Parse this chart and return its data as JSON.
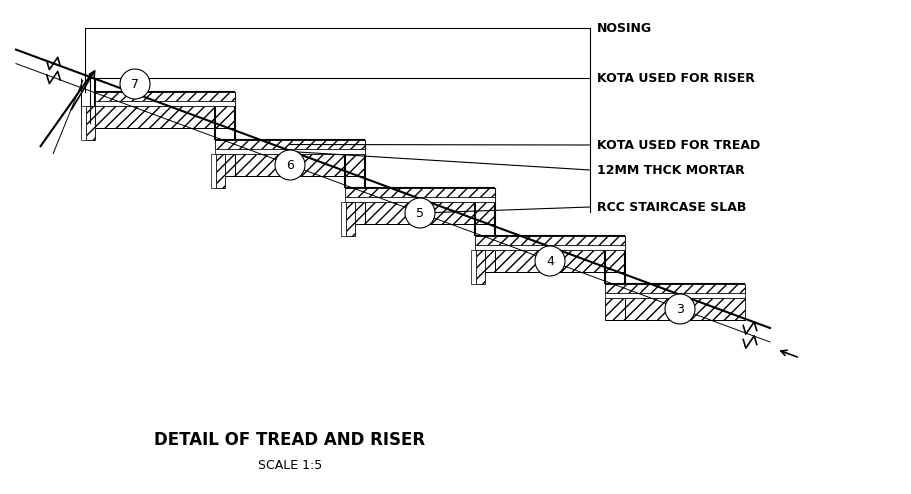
{
  "title": "DETAIL OF TREAD AND RISER",
  "subtitle": "SCALE 1:5",
  "labels": {
    "nosing": "NOSING",
    "kota_riser": "KOTA USED FOR RISER",
    "kota_tread": "KOTA USED FOR TREAD",
    "mortar": "12MM THCK MORTAR",
    "rcc": "RCC STAIRCASE SLAB"
  },
  "bg_color": "#ffffff",
  "line_color": "#000000",
  "title_fontsize": 12,
  "subtitle_fontsize": 9,
  "label_fontsize": 9
}
